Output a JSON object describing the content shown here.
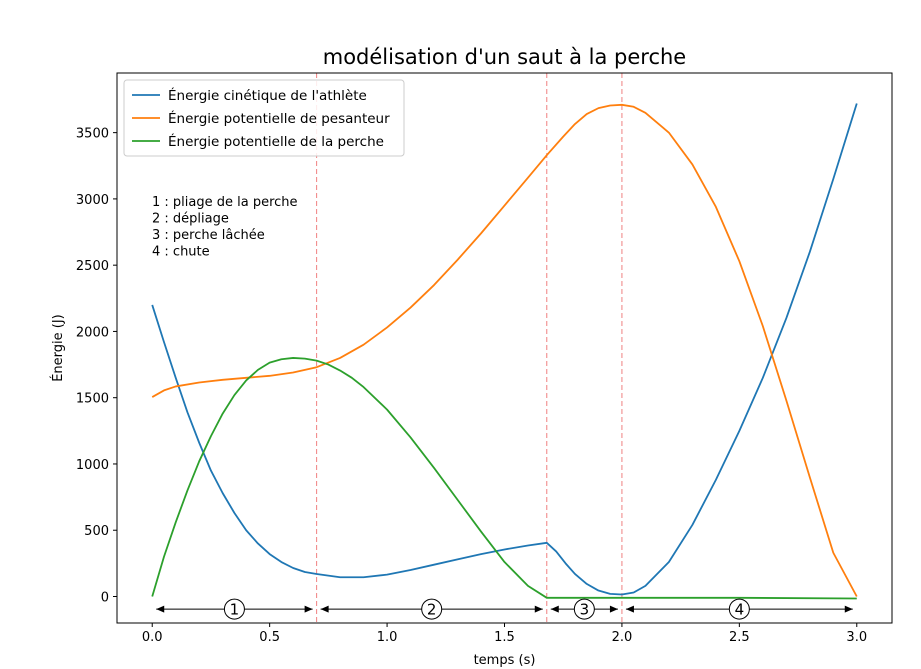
{
  "chart_data": {
    "type": "line",
    "title": "modélisation d'un saut à la perche",
    "xlabel": "temps (s)",
    "ylabel": "Énergie (J)",
    "xlim": [
      -0.15,
      3.15
    ],
    "ylim": [
      -200,
      3950
    ],
    "xticks": [
      0.0,
      0.5,
      1.0,
      1.5,
      2.0,
      2.5,
      3.0
    ],
    "xtick_labels": [
      "0.0",
      "0.5",
      "1.0",
      "1.5",
      "2.0",
      "2.5",
      "3.0"
    ],
    "yticks": [
      0,
      500,
      1000,
      1500,
      2000,
      2500,
      3000,
      3500
    ],
    "ytick_labels": [
      "0",
      "500",
      "1000",
      "1500",
      "2000",
      "2500",
      "3000",
      "3500"
    ],
    "grid": false,
    "legend_position": "top-left",
    "series": [
      {
        "name": "Énergie cinétique de l'athlète",
        "color": "#1f77b4",
        "x": [
          0,
          0.05,
          0.1,
          0.15,
          0.2,
          0.25,
          0.3,
          0.35,
          0.4,
          0.45,
          0.5,
          0.55,
          0.6,
          0.65,
          0.7,
          0.8,
          0.9,
          1.0,
          1.1,
          1.2,
          1.3,
          1.4,
          1.5,
          1.6,
          1.68,
          1.72,
          1.76,
          1.8,
          1.85,
          1.9,
          1.95,
          2.0,
          2.05,
          2.1,
          2.2,
          2.3,
          2.4,
          2.5,
          2.6,
          2.7,
          2.8,
          2.9,
          3.0
        ],
        "y": [
          2200,
          1920,
          1650,
          1390,
          1160,
          950,
          780,
          630,
          500,
          400,
          320,
          260,
          215,
          185,
          170,
          145,
          145,
          165,
          200,
          240,
          280,
          320,
          355,
          385,
          405,
          340,
          250,
          170,
          95,
          45,
          20,
          15,
          30,
          80,
          260,
          540,
          880,
          1250,
          1650,
          2100,
          2600,
          3150,
          3720
        ]
      },
      {
        "name": "Énergie potentielle de pesanteur",
        "color": "#ff7f0e",
        "x": [
          0,
          0.05,
          0.1,
          0.2,
          0.3,
          0.4,
          0.5,
          0.6,
          0.7,
          0.8,
          0.9,
          1.0,
          1.1,
          1.2,
          1.3,
          1.4,
          1.5,
          1.6,
          1.68,
          1.75,
          1.8,
          1.85,
          1.9,
          1.95,
          2.0,
          2.05,
          2.1,
          2.2,
          2.3,
          2.4,
          2.5,
          2.6,
          2.7,
          2.8,
          2.9,
          3.0
        ],
        "y": [
          1505,
          1555,
          1585,
          1615,
          1635,
          1650,
          1665,
          1690,
          1730,
          1800,
          1900,
          2030,
          2180,
          2350,
          2540,
          2740,
          2950,
          3160,
          3330,
          3470,
          3565,
          3640,
          3685,
          3705,
          3710,
          3695,
          3650,
          3500,
          3260,
          2940,
          2530,
          2040,
          1480,
          900,
          330,
          0
        ]
      },
      {
        "name": "Énergie potentielle de la perche",
        "color": "#2ca02c",
        "x": [
          0,
          0.05,
          0.1,
          0.15,
          0.2,
          0.25,
          0.3,
          0.35,
          0.4,
          0.45,
          0.5,
          0.55,
          0.6,
          0.65,
          0.7,
          0.75,
          0.8,
          0.85,
          0.9,
          1.0,
          1.1,
          1.2,
          1.3,
          1.4,
          1.5,
          1.6,
          1.68,
          1.8,
          2.0,
          2.5,
          3.0
        ],
        "y": [
          0,
          300,
          560,
          800,
          1020,
          1210,
          1380,
          1520,
          1630,
          1710,
          1765,
          1790,
          1800,
          1795,
          1780,
          1750,
          1705,
          1650,
          1580,
          1410,
          1200,
          970,
          730,
          490,
          260,
          80,
          -10,
          -10,
          -10,
          -10,
          -15
        ]
      }
    ],
    "phase_lines_x": [
      0.7,
      1.68,
      2.0
    ],
    "phases": [
      {
        "label": "1",
        "start": 0.0,
        "end": 0.7
      },
      {
        "label": "2",
        "start": 0.7,
        "end": 1.68
      },
      {
        "label": "3",
        "start": 1.68,
        "end": 2.0
      },
      {
        "label": "4",
        "start": 2.0,
        "end": 3.0
      }
    ],
    "phase_arrow_y": -95,
    "notes": [
      "1 : pliage de la perche",
      "2 : dépliage",
      "3 : perche lâchée",
      "4 : chute"
    ],
    "phase_line_color": "#f08080"
  }
}
